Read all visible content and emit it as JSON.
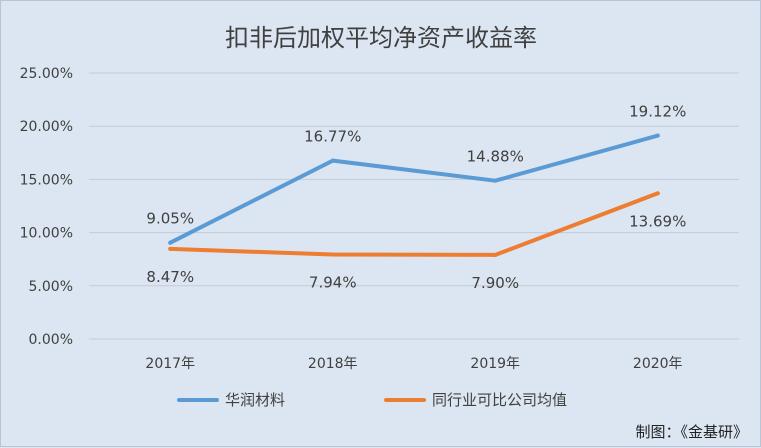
{
  "chart_data": {
    "type": "line",
    "title": "扣非后加权平均净资产收益率",
    "categories": [
      "2017年",
      "2018年",
      "2019年",
      "2020年"
    ],
    "ylim": [
      0,
      25
    ],
    "yticks": [
      "0.00%",
      "5.00%",
      "10.00%",
      "15.00%",
      "20.00%",
      "25.00%"
    ],
    "grid": true,
    "legend_position": "bottom",
    "series": [
      {
        "name": "华润材料",
        "color": "#5b9bd5",
        "values": [
          9.05,
          16.77,
          14.88,
          19.12
        ],
        "labels": [
          "9.05%",
          "16.77%",
          "14.88%",
          "19.12%"
        ],
        "label_side": "above"
      },
      {
        "name": "同行业可比公司均值",
        "color": "#ed7d31",
        "values": [
          8.47,
          7.94,
          7.9,
          13.69
        ],
        "labels": [
          "8.47%",
          "7.94%",
          "7.90%",
          "13.69%"
        ],
        "label_side": "below"
      }
    ]
  },
  "credit": "制图：《金基研》"
}
